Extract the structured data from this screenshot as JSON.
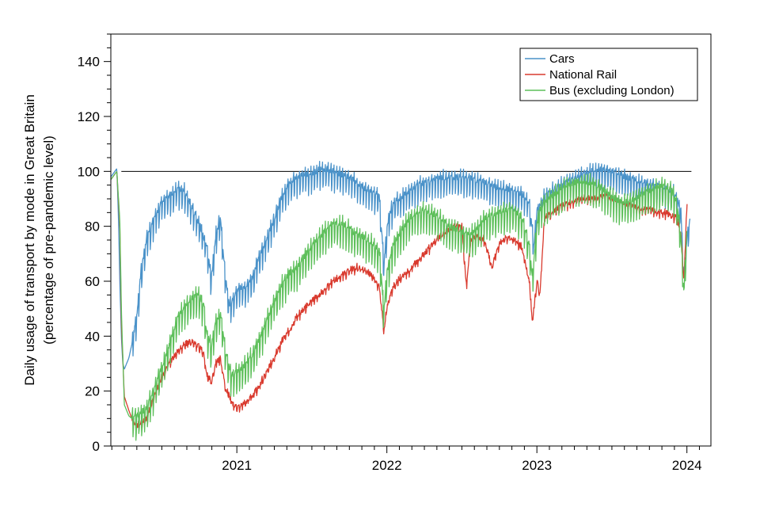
{
  "chart_data": {
    "type": "line",
    "title": "",
    "ylabel_line1": "Daily usage of transport by mode in Great Britain",
    "ylabel_line2": "(percentage of pre-pandemic level)",
    "xlabel": "",
    "xlim": [
      2020.16,
      2024.16
    ],
    "ylim": [
      0,
      150
    ],
    "y_ticks": [
      0,
      20,
      40,
      60,
      80,
      100,
      120,
      140
    ],
    "y_tick_labels": [
      "0",
      "20",
      "40",
      "60",
      "80",
      "100",
      "120",
      "140"
    ],
    "x_ticks": [
      2021,
      2022,
      2023,
      2024
    ],
    "x_tick_labels": [
      "2021",
      "2022",
      "2023",
      "2024"
    ],
    "reference_line": 100,
    "legend_position": "top-right",
    "series": [
      {
        "name": "Cars",
        "color": "#4a92c9",
        "weekly_amplitude": 6,
        "x": [
          2020.16,
          2020.2,
          2020.21,
          2020.22,
          2020.23,
          2020.24,
          2020.25,
          2020.28,
          2020.3,
          2020.33,
          2020.36,
          2020.4,
          2020.45,
          2020.5,
          2020.55,
          2020.6,
          2020.65,
          2020.7,
          2020.75,
          2020.8,
          2020.83,
          2020.86,
          2020.89,
          2020.92,
          2020.95,
          2020.97,
          2021.0,
          2021.03,
          2021.06,
          2021.1,
          2021.15,
          2021.2,
          2021.25,
          2021.3,
          2021.35,
          2021.4,
          2021.45,
          2021.5,
          2021.55,
          2021.6,
          2021.65,
          2021.7,
          2021.75,
          2021.8,
          2021.85,
          2021.9,
          2021.95,
          2021.98,
          2022.0,
          2022.02,
          2022.05,
          2022.1,
          2022.15,
          2022.2,
          2022.25,
          2022.3,
          2022.35,
          2022.4,
          2022.45,
          2022.5,
          2022.55,
          2022.6,
          2022.65,
          2022.7,
          2022.75,
          2022.8,
          2022.85,
          2022.9,
          2022.95,
          2022.98,
          2023.0,
          2023.02,
          2023.05,
          2023.1,
          2023.15,
          2023.2,
          2023.25,
          2023.3,
          2023.35,
          2023.4,
          2023.45,
          2023.5,
          2023.55,
          2023.6,
          2023.65,
          2023.7,
          2023.75,
          2023.8,
          2023.85,
          2023.9,
          2023.93,
          2023.96,
          2023.98,
          2024.0,
          2024.02
        ],
        "y": [
          98,
          101,
          85,
          60,
          40,
          30,
          28,
          32,
          37,
          45,
          62,
          75,
          82,
          88,
          90,
          93,
          92,
          86,
          80,
          72,
          60,
          76,
          82,
          63,
          50,
          52,
          56,
          57,
          57,
          60,
          68,
          75,
          82,
          90,
          95,
          97,
          98,
          98,
          100,
          100,
          99,
          98,
          97,
          95,
          93,
          92,
          90,
          65,
          78,
          84,
          88,
          90,
          92,
          94,
          95,
          96,
          97,
          97,
          97,
          97,
          97,
          96,
          95,
          94,
          93,
          93,
          92,
          91,
          88,
          72,
          85,
          87,
          90,
          92,
          94,
          96,
          97,
          98,
          99,
          100,
          100,
          99,
          98,
          97,
          96,
          95,
          95,
          94,
          93,
          92,
          90,
          85,
          60,
          75,
          82
        ]
      },
      {
        "name": "National Rail",
        "color": "#d93a2e",
        "weekly_amplitude": 1.5,
        "x": [
          2020.16,
          2020.2,
          2020.22,
          2020.23,
          2020.25,
          2020.28,
          2020.3,
          2020.33,
          2020.36,
          2020.4,
          2020.45,
          2020.5,
          2020.55,
          2020.6,
          2020.65,
          2020.7,
          2020.75,
          2020.78,
          2020.8,
          2020.83,
          2020.86,
          2020.89,
          2020.92,
          2020.95,
          2020.97,
          2021.0,
          2021.03,
          2021.06,
          2021.1,
          2021.15,
          2021.2,
          2021.25,
          2021.3,
          2021.35,
          2021.4,
          2021.45,
          2021.5,
          2021.55,
          2021.6,
          2021.65,
          2021.7,
          2021.75,
          2021.8,
          2021.85,
          2021.9,
          2021.95,
          2021.98,
          2022.0,
          2022.04,
          2022.1,
          2022.15,
          2022.2,
          2022.25,
          2022.3,
          2022.35,
          2022.4,
          2022.45,
          2022.5,
          2022.53,
          2022.56,
          2022.6,
          2022.65,
          2022.7,
          2022.75,
          2022.8,
          2022.85,
          2022.9,
          2022.95,
          2022.97,
          2023.0,
          2023.02,
          2023.05,
          2023.1,
          2023.15,
          2023.2,
          2023.25,
          2023.3,
          2023.35,
          2023.4,
          2023.45,
          2023.5,
          2023.55,
          2023.6,
          2023.65,
          2023.7,
          2023.75,
          2023.8,
          2023.85,
          2023.9,
          2023.93,
          2023.96,
          2023.98,
          2024.0
        ],
        "y": [
          97,
          100,
          80,
          45,
          18,
          13,
          10,
          7,
          8,
          10,
          18,
          25,
          30,
          34,
          37,
          38,
          36,
          33,
          26,
          23,
          30,
          32,
          22,
          18,
          15,
          14,
          15,
          16,
          18,
          22,
          27,
          32,
          38,
          42,
          47,
          50,
          53,
          55,
          58,
          60,
          62,
          64,
          65,
          64,
          62,
          58,
          42,
          50,
          58,
          62,
          64,
          67,
          70,
          73,
          76,
          78,
          80,
          80,
          58,
          75,
          76,
          75,
          65,
          74,
          76,
          75,
          72,
          60,
          45,
          60,
          55,
          83,
          85,
          87,
          88,
          89,
          90,
          90,
          90,
          91,
          90,
          89,
          88,
          87,
          86,
          86,
          85,
          85,
          84,
          83,
          78,
          60,
          88
        ]
      },
      {
        "name": "Bus (excluding London)",
        "color": "#5dbf5a",
        "weekly_amplitude": 7,
        "x": [
          2020.16,
          2020.2,
          2020.22,
          2020.23,
          2020.25,
          2020.28,
          2020.3,
          2020.33,
          2020.36,
          2020.4,
          2020.45,
          2020.5,
          2020.55,
          2020.6,
          2020.65,
          2020.7,
          2020.75,
          2020.78,
          2020.8,
          2020.83,
          2020.86,
          2020.89,
          2020.92,
          2020.95,
          2020.97,
          2021.0,
          2021.03,
          2021.06,
          2021.1,
          2021.15,
          2021.2,
          2021.25,
          2021.3,
          2021.35,
          2021.4,
          2021.45,
          2021.5,
          2021.55,
          2021.6,
          2021.65,
          2021.7,
          2021.75,
          2021.8,
          2021.85,
          2021.9,
          2021.95,
          2021.98,
          2022.0,
          2022.04,
          2022.1,
          2022.15,
          2022.2,
          2022.25,
          2022.3,
          2022.35,
          2022.4,
          2022.45,
          2022.5,
          2022.55,
          2022.6,
          2022.65,
          2022.7,
          2022.75,
          2022.8,
          2022.85,
          2022.9,
          2022.95,
          2022.97,
          2023.0,
          2023.02,
          2023.05,
          2023.1,
          2023.15,
          2023.2,
          2023.25,
          2023.3,
          2023.35,
          2023.4,
          2023.45,
          2023.5,
          2023.55,
          2023.6,
          2023.65,
          2023.7,
          2023.75,
          2023.8,
          2023.85,
          2023.9,
          2023.93,
          2023.96,
          2023.98,
          2024.0
        ],
        "y": [
          97,
          100,
          82,
          50,
          15,
          11,
          10,
          10,
          11,
          13,
          20,
          28,
          36,
          45,
          50,
          53,
          54,
          50,
          40,
          35,
          44,
          48,
          35,
          27,
          25,
          26,
          27,
          29,
          32,
          38,
          45,
          52,
          58,
          62,
          64,
          68,
          72,
          75,
          78,
          80,
          80,
          78,
          76,
          75,
          73,
          70,
          48,
          62,
          72,
          78,
          82,
          84,
          85,
          84,
          82,
          80,
          78,
          77,
          76,
          78,
          82,
          83,
          84,
          85,
          85,
          82,
          72,
          60,
          80,
          85,
          88,
          90,
          92,
          94,
          95,
          95,
          95,
          94,
          92,
          90,
          88,
          88,
          89,
          91,
          92,
          93,
          94,
          92,
          88,
          75,
          55,
          78
        ]
      }
    ]
  }
}
